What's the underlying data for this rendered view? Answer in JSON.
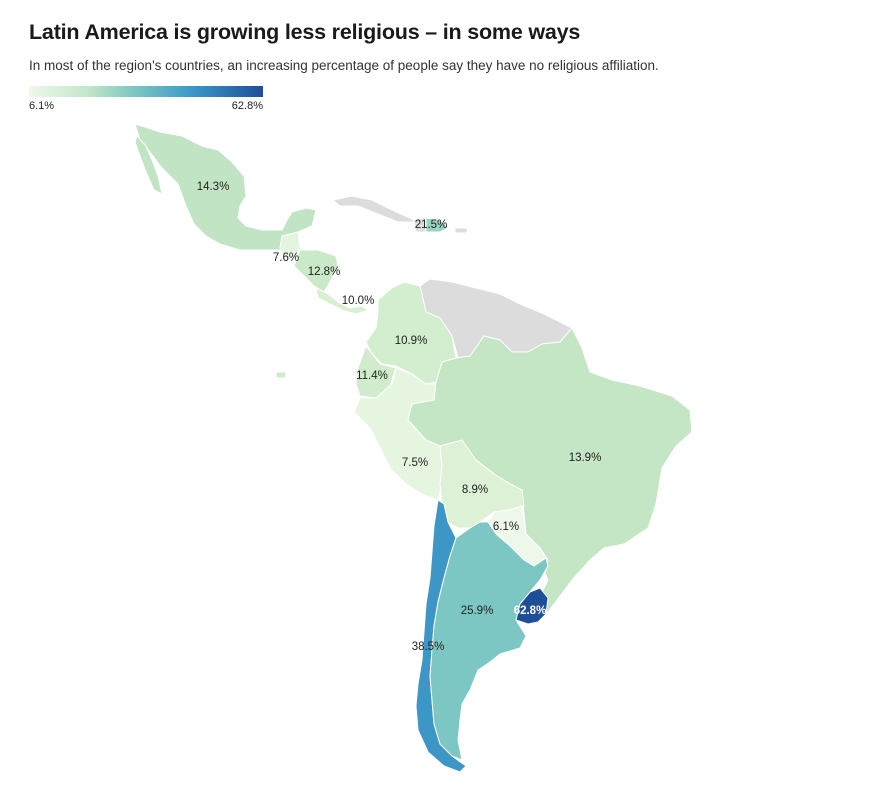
{
  "title": "Latin America is growing less religious – in some ways",
  "subtitle": "In most of the region's countries, an increasing percentage of people say they have no religious affiliation.",
  "legend": {
    "min_label": "6.1%",
    "max_label": "62.8%",
    "min": 6.1,
    "max": 62.8,
    "color_low": "#eef8ea",
    "color_high": "#1f4e98"
  },
  "colors": {
    "no_data": "#dcdcdc"
  },
  "regions": [
    {
      "id": "mexico",
      "value": 14.3,
      "label": "14.3%"
    },
    {
      "id": "guatemala",
      "value": 7.6,
      "label": "7.6%"
    },
    {
      "id": "honduras-nicaragua",
      "value": 12.8,
      "label": "12.8%"
    },
    {
      "id": "costa-rica-panama",
      "value": 10.0,
      "label": "10.0%"
    },
    {
      "id": "dominican-republic",
      "value": 21.5,
      "label": "21.5%"
    },
    {
      "id": "colombia",
      "value": 10.9,
      "label": "10.9%"
    },
    {
      "id": "ecuador",
      "value": 11.4,
      "label": "11.4%"
    },
    {
      "id": "peru",
      "value": 7.5,
      "label": "7.5%"
    },
    {
      "id": "bolivia",
      "value": 8.9,
      "label": "8.9%"
    },
    {
      "id": "paraguay",
      "value": 6.1,
      "label": "6.1%"
    },
    {
      "id": "brazil",
      "value": 13.9,
      "label": "13.9%"
    },
    {
      "id": "argentina",
      "value": 25.9,
      "label": "25.9%"
    },
    {
      "id": "uruguay",
      "value": 62.8,
      "label": "62.8%"
    },
    {
      "id": "chile",
      "value": 38.5,
      "label": "38.5%"
    }
  ]
}
